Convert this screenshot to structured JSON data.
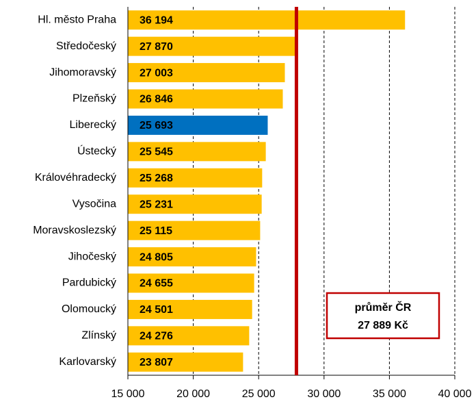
{
  "chart_data": {
    "type": "hbar",
    "categories": [
      "Hl. město Praha",
      "Středočeský",
      "Jihomoravský",
      "Plzeňský",
      "Liberecký",
      "Ústecký",
      "Královéhradecký",
      "Vysočina",
      "Moravskoslezský",
      "Jihočeský",
      "Pardubický",
      "Olomoucký",
      "Zlínský",
      "Karlovarský"
    ],
    "values": [
      36194,
      27870,
      27003,
      26846,
      25693,
      25545,
      25268,
      25231,
      25115,
      24805,
      24655,
      24501,
      24276,
      23807
    ],
    "value_labels": [
      "36 194",
      "27 870",
      "27 003",
      "26 846",
      "25 693",
      "25 545",
      "25 268",
      "25 231",
      "25 115",
      "24 805",
      "24 655",
      "24 501",
      "24 276",
      "23 807"
    ],
    "colors": [
      "#ffc000",
      "#ffc000",
      "#ffc000",
      "#ffc000",
      "#0070c0",
      "#ffc000",
      "#ffc000",
      "#ffc000",
      "#ffc000",
      "#ffc000",
      "#ffc000",
      "#ffc000",
      "#ffc000",
      "#ffc000"
    ],
    "value_label_colors": [
      "#808080",
      "#808080",
      "#808080",
      "#808080",
      "#ffffff",
      "#808080",
      "#808080",
      "#808080",
      "#808080",
      "#808080",
      "#808080",
      "#808080",
      "#808080",
      "#808080"
    ],
    "xlim": [
      15000,
      40000
    ],
    "xticks": [
      {
        "value": 15000,
        "label": "15 000"
      },
      {
        "value": 20000,
        "label": "20 000"
      },
      {
        "value": 25000,
        "label": "25 000"
      },
      {
        "value": 30000,
        "label": "30 000"
      },
      {
        "value": 35000,
        "label": "35 000"
      },
      {
        "value": 40000,
        "label": "40 000"
      }
    ],
    "grid": true,
    "reference_line": {
      "value": 27889,
      "color": "#c00000"
    },
    "annotation": [
      "průměr ČR",
      "27 889 Kč"
    ]
  }
}
